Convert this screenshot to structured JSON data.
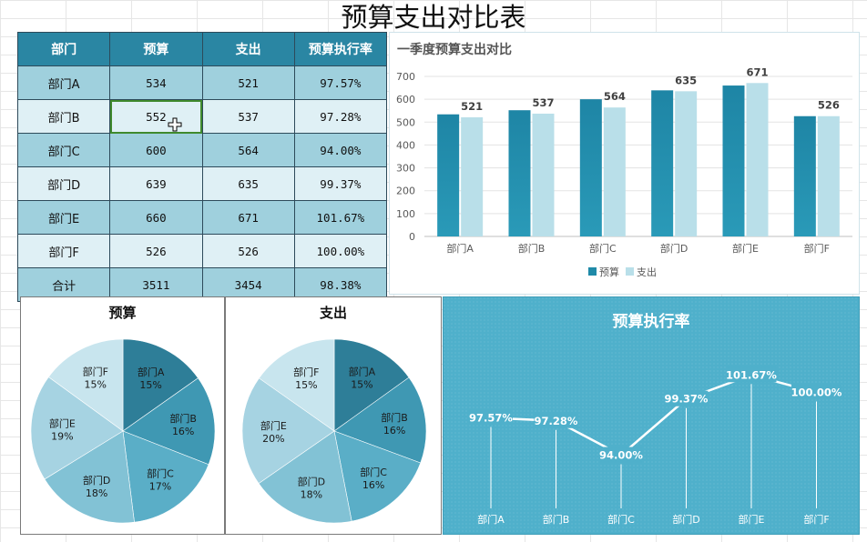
{
  "title": "预算支出对比表",
  "table": {
    "headers": [
      "部门",
      "预算",
      "支出",
      "预算执行率"
    ],
    "rows": [
      [
        "部门A",
        "534",
        "521",
        "97.57%"
      ],
      [
        "部门B",
        "552",
        "537",
        "97.28%"
      ],
      [
        "部门C",
        "600",
        "564",
        "94.00%"
      ],
      [
        "部门D",
        "639",
        "635",
        "99.37%"
      ],
      [
        "部门E",
        "660",
        "671",
        "101.67%"
      ],
      [
        "部门F",
        "526",
        "526",
        "100.00%"
      ]
    ],
    "total": [
      "合计",
      "3511",
      "3454",
      "98.38%"
    ]
  },
  "colors": {
    "header_bg": "#2a86a3",
    "budget_bar": "#1f8aa8",
    "spend_bar": "#b9dfe9",
    "rate_bg": "#4fb0cb",
    "selection_border": "#3f8a2d"
  },
  "icons": {
    "cursor": "cross-cursor-icon"
  },
  "chart_data": [
    {
      "type": "bar",
      "title": "一季度预算支出对比",
      "categories": [
        "部门A",
        "部门B",
        "部门C",
        "部门D",
        "部门E",
        "部门F"
      ],
      "series": [
        {
          "name": "预算",
          "values": [
            534,
            552,
            600,
            639,
            660,
            526
          ]
        },
        {
          "name": "支出",
          "values": [
            521,
            537,
            564,
            635,
            671,
            526
          ]
        }
      ],
      "data_labels_series": "支出",
      "ylim": [
        0,
        700
      ],
      "yticks": [
        0,
        100,
        200,
        300,
        400,
        500,
        600,
        700
      ],
      "grid": true,
      "legend": "bottom"
    },
    {
      "type": "pie",
      "title": "预算",
      "labels": [
        "部门A",
        "部门B",
        "部门C",
        "部门D",
        "部门E",
        "部门F"
      ],
      "values": [
        534,
        552,
        600,
        639,
        660,
        526
      ],
      "percent_labels": [
        "15%",
        "16%",
        "17%",
        "18%",
        "19%",
        "15%"
      ]
    },
    {
      "type": "pie",
      "title": "支出",
      "labels": [
        "部门A",
        "部门B",
        "部门C",
        "部门D",
        "部门E",
        "部门F"
      ],
      "values": [
        521,
        537,
        564,
        635,
        671,
        526
      ],
      "percent_labels": [
        "15%",
        "16%",
        "16%",
        "18%",
        "20%",
        "15%"
      ]
    },
    {
      "type": "line",
      "title": "预算执行率",
      "categories": [
        "部门A",
        "部门B",
        "部门C",
        "部门D",
        "部门E",
        "部门F"
      ],
      "values": [
        97.57,
        97.28,
        94.0,
        99.37,
        101.67,
        100.0
      ],
      "value_labels": [
        "97.57%",
        "97.28%",
        "94.00%",
        "99.37%",
        "101.67%",
        "100.00%"
      ]
    }
  ]
}
